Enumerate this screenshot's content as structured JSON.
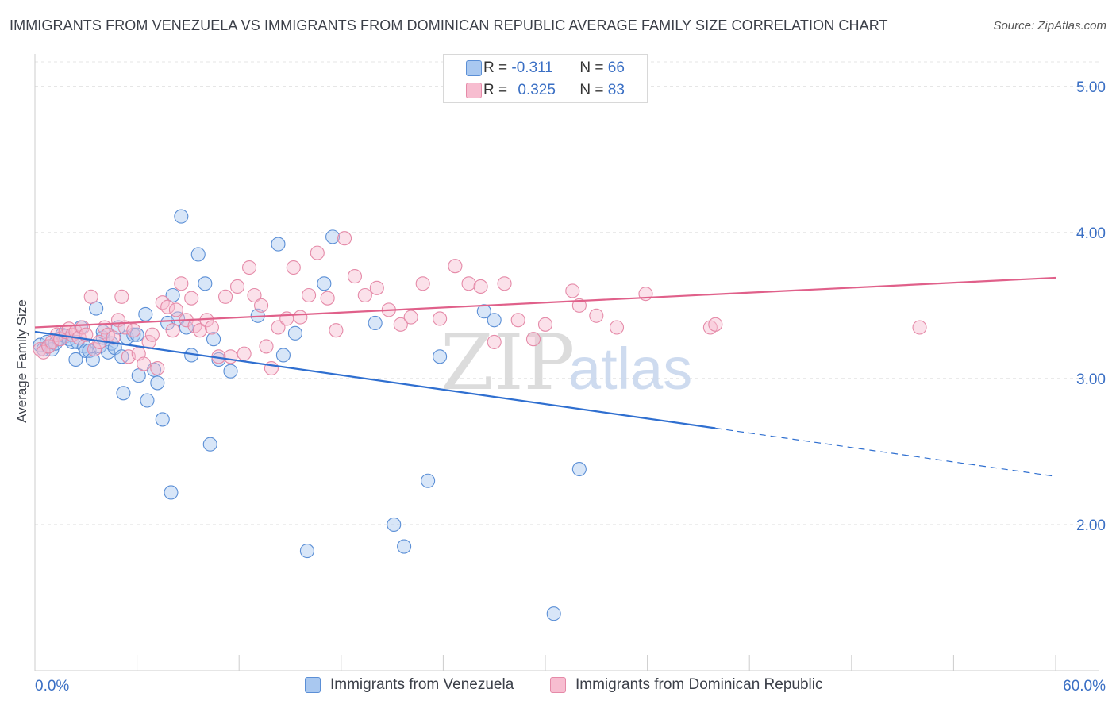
{
  "header": {
    "title": "IMMIGRANTS FROM VENEZUELA VS IMMIGRANTS FROM DOMINICAN REPUBLIC AVERAGE FAMILY SIZE CORRELATION CHART",
    "source": "Source: ZipAtlas.com"
  },
  "legend": {
    "r_label": "R =",
    "n_label": "N =",
    "venezuela": {
      "r": "-0.311",
      "n": "66"
    },
    "dominican": {
      "r": "0.325",
      "n": "83"
    }
  },
  "watermark": {
    "zip": "ZIP",
    "atlas": "atlas"
  },
  "colors": {
    "venezuela_fill": "#a9c8f0",
    "venezuela_stroke": "#5b8fd6",
    "venezuela_line": "#2f6fd0",
    "dominican_fill": "#f7bdd0",
    "dominican_stroke": "#e58aa8",
    "dominican_line": "#e0608a",
    "tick_label": "#3a6fc4"
  },
  "chart_data": {
    "type": "scatter",
    "title": "IMMIGRANTS FROM VENEZUELA VS IMMIGRANTS FROM DOMINICAN REPUBLIC AVERAGE FAMILY SIZE CORRELATION CHART",
    "xlabel": "",
    "ylabel": "Average Family Size",
    "xlim": [
      0,
      60
    ],
    "ylim": [
      1.0,
      5.2
    ],
    "x_tick_labels": {
      "left": "0.0%",
      "right": "60.0%"
    },
    "y_ticks": [
      {
        "value": 2.0,
        "label": "2.00"
      },
      {
        "value": 3.0,
        "label": "3.00"
      },
      {
        "value": 4.0,
        "label": "4.00"
      },
      {
        "value": 5.0,
        "label": "5.00"
      }
    ],
    "grid": true,
    "legend_position": "top-center",
    "series": [
      {
        "name": "Immigrants from Venezuela",
        "key": "venezuela",
        "points": [
          [
            0.3,
            3.23
          ],
          [
            0.5,
            3.2
          ],
          [
            0.7,
            3.25
          ],
          [
            0.8,
            3.22
          ],
          [
            1.0,
            3.2
          ],
          [
            1.2,
            3.24
          ],
          [
            1.4,
            3.27
          ],
          [
            1.6,
            3.3
          ],
          [
            1.8,
            3.29
          ],
          [
            2.0,
            3.27
          ],
          [
            2.2,
            3.25
          ],
          [
            2.4,
            3.13
          ],
          [
            2.5,
            3.25
          ],
          [
            2.7,
            3.35
          ],
          [
            2.9,
            3.22
          ],
          [
            3.0,
            3.19
          ],
          [
            3.2,
            3.19
          ],
          [
            3.4,
            3.13
          ],
          [
            3.6,
            3.48
          ],
          [
            3.8,
            3.22
          ],
          [
            4.0,
            3.28
          ],
          [
            4.3,
            3.18
          ],
          [
            4.5,
            3.24
          ],
          [
            4.7,
            3.21
          ],
          [
            4.9,
            3.35
          ],
          [
            5.1,
            3.15
          ],
          [
            5.4,
            3.28
          ],
          [
            5.8,
            3.3
          ],
          [
            6.1,
            3.02
          ],
          [
            6.5,
            3.44
          ],
          [
            7.0,
            3.06
          ],
          [
            7.2,
            2.97
          ],
          [
            7.5,
            2.72
          ],
          [
            7.8,
            3.38
          ],
          [
            8.1,
            3.57
          ],
          [
            8.4,
            3.41
          ],
          [
            8.6,
            4.11
          ],
          [
            8.9,
            3.35
          ],
          [
            9.2,
            3.16
          ],
          [
            9.6,
            3.85
          ],
          [
            10.0,
            3.65
          ],
          [
            10.3,
            2.55
          ],
          [
            10.5,
            3.27
          ],
          [
            10.8,
            3.13
          ],
          [
            11.5,
            3.05
          ],
          [
            13.1,
            3.43
          ],
          [
            14.3,
            3.92
          ],
          [
            14.6,
            3.16
          ],
          [
            15.3,
            3.31
          ],
          [
            16.0,
            1.82
          ],
          [
            17.0,
            3.65
          ],
          [
            17.5,
            3.97
          ],
          [
            20.0,
            3.38
          ],
          [
            21.1,
            2.0
          ],
          [
            21.7,
            1.85
          ],
          [
            23.1,
            2.3
          ],
          [
            23.8,
            3.15
          ],
          [
            26.4,
            3.46
          ],
          [
            27.0,
            3.4
          ],
          [
            32.0,
            2.38
          ],
          [
            30.5,
            1.39
          ],
          [
            4.0,
            3.32
          ],
          [
            6.0,
            3.3
          ],
          [
            5.2,
            2.9
          ],
          [
            6.6,
            2.85
          ],
          [
            8.0,
            2.22
          ]
        ],
        "trend": {
          "x0": 0,
          "y0": 3.32,
          "x1": 40,
          "y1": 2.66,
          "dashed_to_x": 60,
          "dashed_to_y": 2.33
        }
      },
      {
        "name": "Immigrants from Dominican Republic",
        "key": "dominican",
        "points": [
          [
            0.3,
            3.2
          ],
          [
            0.5,
            3.18
          ],
          [
            0.8,
            3.22
          ],
          [
            1.0,
            3.25
          ],
          [
            1.3,
            3.3
          ],
          [
            1.5,
            3.27
          ],
          [
            1.8,
            3.32
          ],
          [
            2.0,
            3.34
          ],
          [
            2.2,
            3.3
          ],
          [
            2.4,
            3.32
          ],
          [
            2.6,
            3.28
          ],
          [
            2.8,
            3.35
          ],
          [
            3.0,
            3.3
          ],
          [
            3.3,
            3.56
          ],
          [
            3.5,
            3.2
          ],
          [
            3.8,
            3.25
          ],
          [
            4.1,
            3.35
          ],
          [
            4.3,
            3.3
          ],
          [
            4.6,
            3.28
          ],
          [
            4.9,
            3.4
          ],
          [
            5.1,
            3.56
          ],
          [
            5.3,
            3.35
          ],
          [
            5.5,
            3.15
          ],
          [
            5.8,
            3.33
          ],
          [
            6.1,
            3.17
          ],
          [
            6.4,
            3.1
          ],
          [
            6.7,
            3.25
          ],
          [
            6.9,
            3.3
          ],
          [
            7.2,
            3.07
          ],
          [
            7.5,
            3.52
          ],
          [
            7.8,
            3.49
          ],
          [
            8.1,
            3.33
          ],
          [
            8.3,
            3.47
          ],
          [
            8.6,
            3.65
          ],
          [
            8.9,
            3.4
          ],
          [
            9.2,
            3.55
          ],
          [
            9.4,
            3.36
          ],
          [
            9.7,
            3.33
          ],
          [
            10.1,
            3.4
          ],
          [
            10.4,
            3.35
          ],
          [
            10.8,
            3.15
          ],
          [
            11.2,
            3.56
          ],
          [
            11.5,
            3.15
          ],
          [
            11.9,
            3.63
          ],
          [
            12.3,
            3.17
          ],
          [
            12.6,
            3.76
          ],
          [
            12.9,
            3.57
          ],
          [
            13.3,
            3.5
          ],
          [
            13.6,
            3.22
          ],
          [
            13.9,
            3.07
          ],
          [
            14.3,
            3.35
          ],
          [
            14.8,
            3.41
          ],
          [
            15.2,
            3.76
          ],
          [
            15.6,
            3.42
          ],
          [
            16.1,
            3.57
          ],
          [
            16.6,
            3.86
          ],
          [
            17.2,
            3.55
          ],
          [
            17.7,
            3.33
          ],
          [
            18.2,
            3.96
          ],
          [
            18.8,
            3.7
          ],
          [
            19.4,
            3.57
          ],
          [
            20.1,
            3.62
          ],
          [
            20.8,
            3.47
          ],
          [
            21.5,
            3.37
          ],
          [
            22.1,
            3.42
          ],
          [
            22.8,
            3.65
          ],
          [
            23.8,
            3.41
          ],
          [
            24.7,
            3.77
          ],
          [
            25.5,
            3.65
          ],
          [
            26.2,
            3.63
          ],
          [
            27.0,
            3.25
          ],
          [
            27.6,
            3.65
          ],
          [
            28.4,
            3.4
          ],
          [
            29.3,
            3.27
          ],
          [
            30.0,
            3.37
          ],
          [
            31.6,
            3.6
          ],
          [
            32.0,
            3.5
          ],
          [
            33.0,
            3.43
          ],
          [
            34.2,
            3.35
          ],
          [
            35.9,
            3.58
          ],
          [
            39.7,
            3.35
          ],
          [
            40.0,
            3.37
          ],
          [
            52.0,
            3.35
          ]
        ],
        "trend": {
          "x0": 0,
          "y0": 3.35,
          "x1": 60,
          "y1": 3.69
        }
      }
    ]
  },
  "bottom_legend": {
    "venezuela_label": "Immigrants from Venezuela",
    "dominican_label": "Immigrants from Dominican Republic"
  }
}
